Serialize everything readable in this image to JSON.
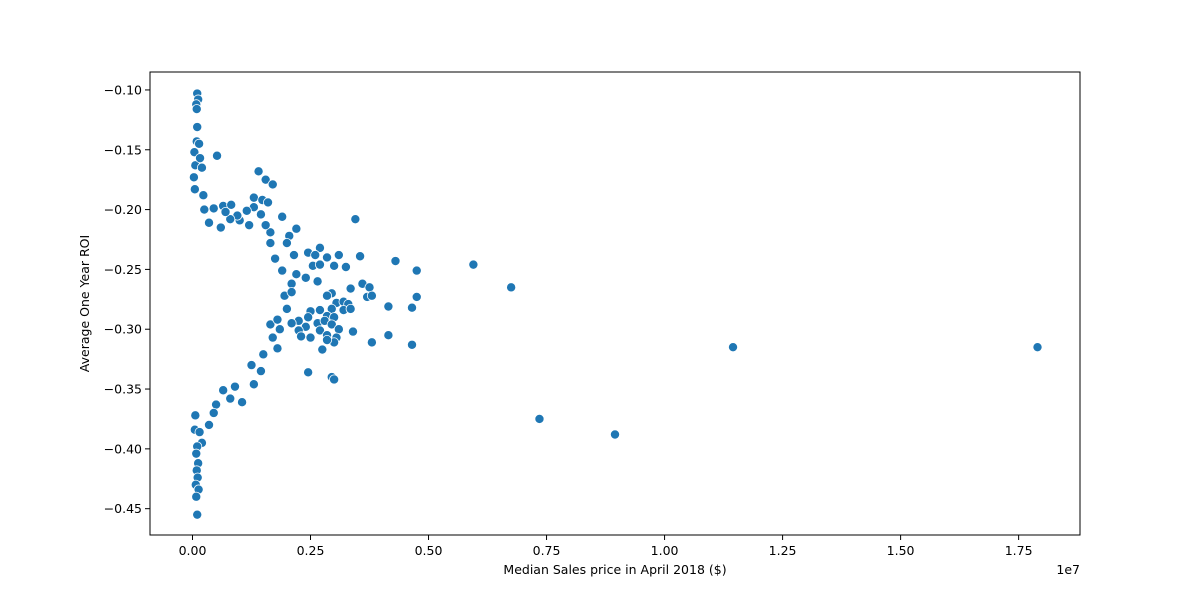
{
  "chart_data": {
    "type": "scatter",
    "title": "",
    "xlabel": "Median Sales price in April 2018 ($)",
    "ylabel": "Average One Year ROI",
    "x_offset_label": "1e7",
    "xlim": [
      -900000,
      18800000
    ],
    "ylim": [
      -0.472,
      -0.085
    ],
    "x_scale": 10000000,
    "xticks": [
      0,
      2500000,
      5000000,
      7500000,
      10000000,
      12500000,
      15000000,
      17500000
    ],
    "xtick_labels": [
      "0.00",
      "0.25",
      "0.50",
      "0.75",
      "1.00",
      "1.25",
      "1.50",
      "1.75"
    ],
    "yticks": [
      -0.45,
      -0.4,
      -0.35,
      -0.3,
      -0.25,
      -0.2,
      -0.15,
      -0.1
    ],
    "ytick_labels": [
      "−0.45",
      "−0.40",
      "−0.35",
      "−0.30",
      "−0.25",
      "−0.20",
      "−0.15",
      "−0.10"
    ],
    "grid": false,
    "legend": "none",
    "marker_color": "#1f77b4",
    "marker_edge": "#ffffff",
    "series": [
      {
        "points": [
          [
            100000,
            -0.103
          ],
          [
            120000,
            -0.108
          ],
          [
            80000,
            -0.112
          ],
          [
            90000,
            -0.116
          ],
          [
            100000,
            -0.131
          ],
          [
            90000,
            -0.143
          ],
          [
            40000,
            -0.152
          ],
          [
            140000,
            -0.145
          ],
          [
            520000,
            -0.155
          ],
          [
            60000,
            -0.163
          ],
          [
            160000,
            -0.157
          ],
          [
            200000,
            -0.165
          ],
          [
            30000,
            -0.173
          ],
          [
            1400000,
            -0.168
          ],
          [
            1550000,
            -0.175
          ],
          [
            1700000,
            -0.179
          ],
          [
            50000,
            -0.183
          ],
          [
            230000,
            -0.188
          ],
          [
            1300000,
            -0.19
          ],
          [
            1480000,
            -0.192
          ],
          [
            1600000,
            -0.194
          ],
          [
            650000,
            -0.197
          ],
          [
            820000,
            -0.196
          ],
          [
            3450000,
            -0.208
          ],
          [
            1900000,
            -0.206
          ],
          [
            1000000,
            -0.209
          ],
          [
            2200000,
            -0.216
          ],
          [
            2050000,
            -0.222
          ],
          [
            1650000,
            -0.228
          ],
          [
            2700000,
            -0.232
          ],
          [
            2450000,
            -0.236
          ],
          [
            2600000,
            -0.238
          ],
          [
            2850000,
            -0.24
          ],
          [
            3100000,
            -0.238
          ],
          [
            3550000,
            -0.239
          ],
          [
            4300000,
            -0.243
          ],
          [
            2550000,
            -0.247
          ],
          [
            2700000,
            -0.246
          ],
          [
            3000000,
            -0.247
          ],
          [
            3250000,
            -0.248
          ],
          [
            4750000,
            -0.251
          ],
          [
            5950000,
            -0.246
          ],
          [
            2400000,
            -0.257
          ],
          [
            2650000,
            -0.26
          ],
          [
            3350000,
            -0.266
          ],
          [
            3600000,
            -0.262
          ],
          [
            3750000,
            -0.265
          ],
          [
            2950000,
            -0.27
          ],
          [
            2850000,
            -0.272
          ],
          [
            6750000,
            -0.265
          ],
          [
            3700000,
            -0.273
          ],
          [
            3800000,
            -0.272
          ],
          [
            4750000,
            -0.273
          ],
          [
            3050000,
            -0.278
          ],
          [
            3200000,
            -0.277
          ],
          [
            3300000,
            -0.279
          ],
          [
            4150000,
            -0.281
          ],
          [
            4650000,
            -0.282
          ],
          [
            2950000,
            -0.283
          ],
          [
            3200000,
            -0.284
          ],
          [
            2700000,
            -0.284
          ],
          [
            2500000,
            -0.285
          ],
          [
            3350000,
            -0.283
          ],
          [
            2850000,
            -0.289
          ],
          [
            3000000,
            -0.29
          ],
          [
            2450000,
            -0.29
          ],
          [
            2650000,
            -0.295
          ],
          [
            2250000,
            -0.293
          ],
          [
            2100000,
            -0.295
          ],
          [
            2400000,
            -0.298
          ],
          [
            2800000,
            -0.293
          ],
          [
            2950000,
            -0.296
          ],
          [
            3100000,
            -0.3
          ],
          [
            2250000,
            -0.301
          ],
          [
            2700000,
            -0.301
          ],
          [
            3400000,
            -0.302
          ],
          [
            2850000,
            -0.305
          ],
          [
            3050000,
            -0.307
          ],
          [
            2300000,
            -0.306
          ],
          [
            2500000,
            -0.307
          ],
          [
            4150000,
            -0.305
          ],
          [
            3000000,
            -0.311
          ],
          [
            2850000,
            -0.309
          ],
          [
            3800000,
            -0.311
          ],
          [
            4650000,
            -0.313
          ],
          [
            11450000,
            -0.315
          ],
          [
            17900000,
            -0.315
          ],
          [
            2750000,
            -0.317
          ],
          [
            2450000,
            -0.336
          ],
          [
            2950000,
            -0.34
          ],
          [
            3000000,
            -0.342
          ],
          [
            7350000,
            -0.375
          ],
          [
            8950000,
            -0.388
          ],
          [
            1500000,
            -0.321
          ],
          [
            1450000,
            -0.335
          ],
          [
            1700000,
            -0.307
          ],
          [
            1800000,
            -0.316
          ],
          [
            1650000,
            -0.296
          ],
          [
            1250000,
            -0.33
          ],
          [
            1300000,
            -0.346
          ],
          [
            1050000,
            -0.361
          ],
          [
            900000,
            -0.348
          ],
          [
            800000,
            -0.358
          ],
          [
            650000,
            -0.351
          ],
          [
            500000,
            -0.363
          ],
          [
            450000,
            -0.37
          ],
          [
            350000,
            -0.38
          ],
          [
            200000,
            -0.395
          ],
          [
            100000,
            -0.398
          ],
          [
            80000,
            -0.404
          ],
          [
            120000,
            -0.412
          ],
          [
            90000,
            -0.418
          ],
          [
            110000,
            -0.424
          ],
          [
            70000,
            -0.43
          ],
          [
            130000,
            -0.434
          ],
          [
            80000,
            -0.44
          ],
          [
            100000,
            -0.455
          ],
          [
            50000,
            -0.384
          ],
          [
            150000,
            -0.386
          ],
          [
            60000,
            -0.372
          ],
          [
            2000000,
            -0.228
          ],
          [
            1900000,
            -0.251
          ],
          [
            2100000,
            -0.262
          ],
          [
            1950000,
            -0.272
          ],
          [
            2000000,
            -0.283
          ],
          [
            1800000,
            -0.292
          ],
          [
            1850000,
            -0.3
          ],
          [
            2100000,
            -0.269
          ],
          [
            2200000,
            -0.254
          ],
          [
            2150000,
            -0.238
          ],
          [
            1750000,
            -0.241
          ],
          [
            1650000,
            -0.219
          ],
          [
            1550000,
            -0.213
          ],
          [
            1450000,
            -0.204
          ],
          [
            1300000,
            -0.198
          ],
          [
            1150000,
            -0.201
          ],
          [
            1200000,
            -0.213
          ],
          [
            950000,
            -0.205
          ],
          [
            800000,
            -0.208
          ],
          [
            700000,
            -0.202
          ],
          [
            600000,
            -0.215
          ],
          [
            450000,
            -0.199
          ],
          [
            350000,
            -0.211
          ],
          [
            250000,
            -0.2
          ]
        ]
      }
    ]
  }
}
